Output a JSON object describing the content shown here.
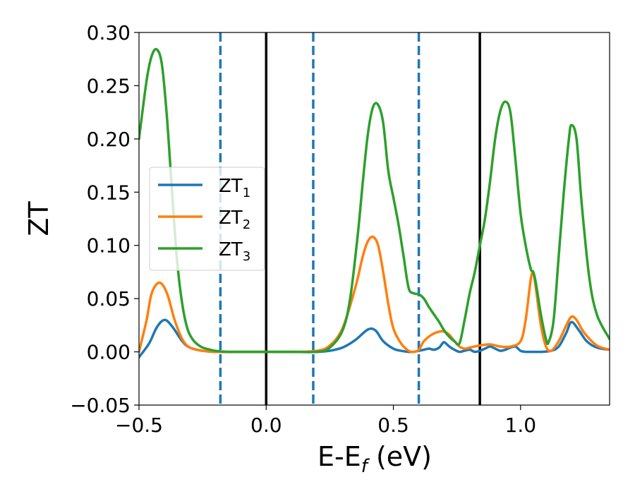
{
  "chart_data": {
    "type": "line",
    "title": "",
    "xlabel": "E-E",
    "xlabel_sub": "f",
    "xlabel_unit": " (eV)",
    "ylabel": "ZT",
    "xlim": [
      -0.5,
      1.35
    ],
    "ylim": [
      -0.05,
      0.3
    ],
    "xticks": [
      -0.5,
      0.0,
      0.5,
      1.0
    ],
    "xtick_labels": [
      "−0.5",
      "0.0",
      "0.5",
      "1.0"
    ],
    "yticks": [
      -0.05,
      0.0,
      0.05,
      0.1,
      0.15,
      0.2,
      0.25,
      0.3
    ],
    "ytick_labels": [
      "−0.05",
      "0.00",
      "0.05",
      "0.10",
      "0.15",
      "0.20",
      "0.25",
      "0.30"
    ],
    "legend_position": "center-left",
    "series": [
      {
        "name": "ZT",
        "name_sub": "1",
        "color": "#1f77b4",
        "x": [
          -0.5,
          -0.46,
          -0.43,
          -0.4,
          -0.37,
          -0.33,
          -0.3,
          -0.25,
          -0.2,
          -0.1,
          0.0,
          0.1,
          0.2,
          0.25,
          0.3,
          0.35,
          0.4,
          0.43,
          0.46,
          0.5,
          0.53,
          0.56,
          0.58,
          0.6,
          0.62,
          0.64,
          0.66,
          0.68,
          0.69,
          0.7,
          0.72,
          0.74,
          0.76,
          0.78,
          0.8,
          0.82,
          0.84,
          0.86,
          0.88,
          0.9,
          0.92,
          0.94,
          0.96,
          0.98,
          1.0,
          1.02,
          1.05,
          1.08,
          1.12,
          1.15,
          1.18,
          1.2,
          1.23,
          1.26,
          1.3,
          1.35
        ],
        "y": [
          -0.005,
          0.008,
          0.023,
          0.03,
          0.024,
          0.01,
          0.004,
          0.001,
          0.0,
          0.0,
          0.0,
          0.0,
          0.0,
          0.001,
          0.004,
          0.011,
          0.021,
          0.02,
          0.01,
          0.003,
          0.001,
          0.0,
          0.0,
          0.001,
          0.002,
          0.003,
          0.002,
          0.004,
          0.007,
          0.009,
          0.005,
          0.002,
          0.0,
          0.001,
          0.002,
          0.0,
          0.001,
          0.003,
          0.005,
          0.003,
          0.001,
          0.002,
          0.004,
          0.005,
          0.001,
          0.0,
          0.0,
          0.0,
          0.001,
          0.005,
          0.018,
          0.028,
          0.02,
          0.01,
          0.004,
          0.002
        ]
      },
      {
        "name": "ZT",
        "name_sub": "2",
        "color": "#ff7f0e",
        "x": [
          -0.5,
          -0.47,
          -0.45,
          -0.42,
          -0.39,
          -0.36,
          -0.33,
          -0.3,
          -0.25,
          -0.2,
          -0.1,
          0.0,
          0.1,
          0.2,
          0.25,
          0.3,
          0.35,
          0.38,
          0.4,
          0.42,
          0.44,
          0.46,
          0.48,
          0.5,
          0.53,
          0.56,
          0.58,
          0.6,
          0.62,
          0.65,
          0.68,
          0.7,
          0.72,
          0.74,
          0.76,
          0.78,
          0.8,
          0.84,
          0.88,
          0.92,
          0.96,
          1.0,
          1.02,
          1.04,
          1.05,
          1.06,
          1.08,
          1.1,
          1.12,
          1.15,
          1.18,
          1.2,
          1.22,
          1.25,
          1.3,
          1.35
        ],
        "y": [
          0.0,
          0.03,
          0.055,
          0.065,
          0.055,
          0.03,
          0.012,
          0.004,
          0.001,
          0.0,
          0.0,
          0.0,
          0.0,
          0.001,
          0.006,
          0.022,
          0.06,
          0.09,
          0.104,
          0.108,
          0.1,
          0.075,
          0.045,
          0.022,
          0.008,
          0.001,
          0.0,
          0.002,
          0.01,
          0.016,
          0.019,
          0.019,
          0.016,
          0.01,
          0.005,
          0.003,
          0.004,
          0.006,
          0.007,
          0.005,
          0.005,
          0.01,
          0.03,
          0.068,
          0.074,
          0.06,
          0.025,
          0.005,
          0.001,
          0.01,
          0.025,
          0.033,
          0.03,
          0.018,
          0.006,
          0.002
        ]
      },
      {
        "name": "ZT",
        "name_sub": "3",
        "color": "#2ca02c",
        "x": [
          -0.5,
          -0.47,
          -0.45,
          -0.43,
          -0.41,
          -0.39,
          -0.37,
          -0.35,
          -0.33,
          -0.31,
          -0.29,
          -0.27,
          -0.25,
          -0.22,
          -0.2,
          -0.15,
          -0.1,
          0.0,
          0.1,
          0.2,
          0.25,
          0.3,
          0.33,
          0.36,
          0.38,
          0.4,
          0.42,
          0.44,
          0.46,
          0.48,
          0.5,
          0.52,
          0.54,
          0.56,
          0.58,
          0.6,
          0.62,
          0.64,
          0.66,
          0.68,
          0.7,
          0.72,
          0.74,
          0.76,
          0.78,
          0.8,
          0.82,
          0.84,
          0.86,
          0.88,
          0.9,
          0.92,
          0.94,
          0.96,
          0.98,
          1.0,
          1.02,
          1.04,
          1.05,
          1.06,
          1.08,
          1.1,
          1.11,
          1.13,
          1.15,
          1.17,
          1.19,
          1.2,
          1.22,
          1.24,
          1.27,
          1.3,
          1.35
        ],
        "y": [
          0.2,
          0.255,
          0.278,
          0.284,
          0.27,
          0.22,
          0.15,
          0.085,
          0.045,
          0.022,
          0.012,
          0.007,
          0.004,
          0.002,
          0.001,
          0.0,
          0.0,
          0.0,
          0.0,
          0.0,
          0.004,
          0.02,
          0.05,
          0.11,
          0.16,
          0.205,
          0.23,
          0.232,
          0.215,
          0.17,
          0.145,
          0.12,
          0.09,
          0.06,
          0.055,
          0.054,
          0.05,
          0.042,
          0.035,
          0.028,
          0.02,
          0.014,
          0.01,
          0.008,
          0.03,
          0.055,
          0.075,
          0.1,
          0.125,
          0.16,
          0.2,
          0.226,
          0.235,
          0.225,
          0.18,
          0.13,
          0.1,
          0.078,
          0.075,
          0.065,
          0.035,
          0.012,
          0.009,
          0.03,
          0.09,
          0.15,
          0.2,
          0.213,
          0.2,
          0.14,
          0.07,
          0.035,
          0.012
        ]
      }
    ],
    "vlines": [
      {
        "x": -0.18,
        "style": "dashed",
        "color": "#1f77b4"
      },
      {
        "x": 0.0,
        "style": "solid",
        "color": "#000000"
      },
      {
        "x": 0.185,
        "style": "dashed",
        "color": "#1f77b4"
      },
      {
        "x": 0.6,
        "style": "dashed",
        "color": "#1f77b4"
      },
      {
        "x": 0.84,
        "style": "solid",
        "color": "#000000"
      }
    ]
  }
}
